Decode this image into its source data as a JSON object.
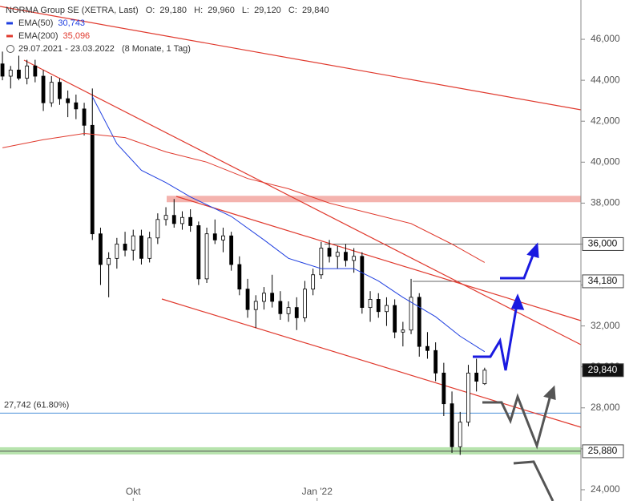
{
  "chart_data": {
    "type": "candlestick",
    "title": "NORMA Group SE (XETRA, Last)",
    "ohlc_header": [
      {
        "key": "O:",
        "value": "29,180"
      },
      {
        "key": "H:",
        "value": "29,960"
      },
      {
        "key": "L:",
        "value": "29,120"
      },
      {
        "key": "C:",
        "value": "29,840"
      }
    ],
    "period": "29.07.2021 - 23.03.2022",
    "period_note": "(8 Monate, 1 Tag)",
    "candles": {
      "open": [
        44800,
        44200,
        44500,
        44100,
        44700,
        44200,
        42900,
        43900,
        43100,
        42900,
        42600,
        41800,
        36500,
        35000,
        35300,
        36000,
        35700,
        36400,
        35300,
        36300,
        37200,
        37400,
        37000,
        37300,
        36900,
        34300,
        36500,
        36200,
        36400,
        35000,
        33800,
        32800,
        33200,
        33600,
        33200,
        32600,
        32900,
        32400,
        33800,
        34500,
        35800,
        35400,
        35600,
        35200,
        35400,
        32900,
        33300,
        32700,
        33000,
        31700,
        31800,
        33400,
        31000,
        30800,
        29700,
        28200,
        26100,
        27300,
        29700,
        29180
      ],
      "high": [
        45400,
        44700,
        45200,
        45000,
        45000,
        44500,
        44200,
        44100,
        43500,
        43300,
        42900,
        43600,
        36800,
        35600,
        36300,
        36600,
        36700,
        36700,
        36600,
        37500,
        37800,
        38200,
        37600,
        37700,
        37100,
        36800,
        37200,
        36800,
        36600,
        35400,
        34300,
        33500,
        33900,
        34500,
        33700,
        33200,
        33400,
        34200,
        34800,
        36100,
        36200,
        35900,
        36000,
        35800,
        35600,
        33700,
        33600,
        33400,
        33300,
        32200,
        34300,
        33600,
        31700,
        31200,
        30200,
        28800,
        27800,
        30100,
        30400,
        29960
      ],
      "low": [
        44000,
        43600,
        44000,
        43800,
        43900,
        42500,
        42700,
        42800,
        42200,
        42100,
        41300,
        36200,
        34000,
        33400,
        34800,
        35400,
        35200,
        35000,
        35100,
        36000,
        36900,
        36800,
        36700,
        36600,
        34000,
        34100,
        36000,
        35600,
        34700,
        33500,
        32400,
        31900,
        32800,
        32900,
        32300,
        32200,
        31800,
        32200,
        33500,
        34300,
        35100,
        34800,
        34900,
        34600,
        32600,
        32200,
        32400,
        32000,
        31400,
        31000,
        31600,
        30500,
        30400,
        29300,
        27600,
        25800,
        25700,
        27100,
        28800,
        29120
      ],
      "close": [
        44200,
        44500,
        44100,
        44700,
        44200,
        42900,
        43900,
        43100,
        42900,
        42600,
        41800,
        36500,
        35000,
        35300,
        36000,
        35700,
        36400,
        35300,
        36300,
        37200,
        37400,
        37000,
        37300,
        36900,
        34300,
        36500,
        36200,
        36400,
        35000,
        33800,
        32800,
        33200,
        33600,
        33200,
        32600,
        32900,
        32400,
        33800,
        34500,
        35800,
        35400,
        35600,
        35200,
        35400,
        32900,
        33300,
        32700,
        33000,
        31700,
        31800,
        33400,
        31000,
        30800,
        29700,
        28200,
        26100,
        27300,
        29700,
        29300,
        29840
      ]
    },
    "series": [
      {
        "name": "EMA(50)",
        "color": "#1f3fe0",
        "legend_value": "30,743",
        "x": [
          11,
          14,
          17,
          20,
          23,
          28,
          32,
          35,
          39,
          43,
          46,
          49,
          53,
          56,
          59
        ],
        "values": [
          43200,
          40900,
          39600,
          39000,
          38300,
          37350,
          36200,
          35300,
          34800,
          34800,
          34200,
          33400,
          32450,
          31500,
          30743
        ]
      },
      {
        "name": "EMA(200)",
        "color": "#e03a2e",
        "legend_value": "35,096",
        "x": [
          0,
          5,
          10,
          15,
          20,
          25,
          30,
          35,
          40,
          45,
          50,
          55,
          59
        ],
        "values": [
          40700,
          41100,
          41400,
          41200,
          40500,
          40000,
          39200,
          38700,
          38000,
          37500,
          37000,
          36000,
          35100
        ]
      }
    ],
    "xlim": [
      -0.3,
      70.78
    ],
    "ylim": [
      23450,
      47920
    ],
    "yticks": [
      {
        "value": 24000,
        "label": "24,000"
      },
      {
        "value": 26000,
        "label": "26,000"
      },
      {
        "value": 28000,
        "label": "28,000"
      },
      {
        "value": 30000,
        "label": "30,000"
      },
      {
        "value": 32000,
        "label": "32,000"
      },
      {
        "value": 34000,
        "label": "34,000"
      },
      {
        "value": 36000,
        "label": "36,000"
      },
      {
        "value": 38000,
        "label": "38,000"
      },
      {
        "value": 40000,
        "label": "40,000"
      },
      {
        "value": 42000,
        "label": "42,000"
      },
      {
        "value": 44000,
        "label": "44,000"
      },
      {
        "value": 46000,
        "label": "46,000"
      }
    ],
    "xticks": [
      {
        "value": 16,
        "label": "Okt"
      },
      {
        "value": 38.5,
        "label": "Jan '22"
      }
    ],
    "levels": [
      {
        "value": 36000,
        "label": "36,000"
      },
      {
        "value": 34180,
        "label": "34,180"
      }
    ],
    "resistance_zone": 38200,
    "support_zone": {
      "value": 25880,
      "label": "25,880"
    },
    "fibonacci": {
      "value": 27742,
      "label": "27,742 (61.80%)"
    },
    "last_price": {
      "value": 29840,
      "label": "29,840"
    }
  }
}
